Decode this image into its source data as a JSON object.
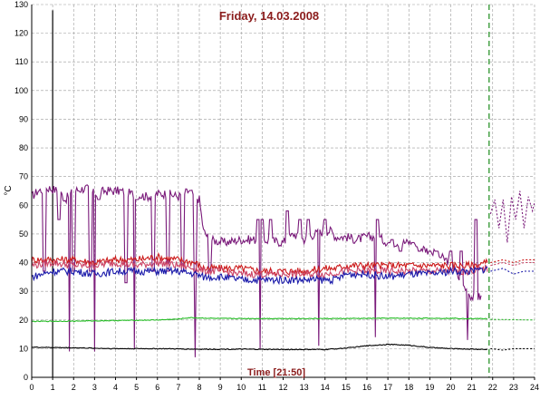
{
  "chart_data": {
    "type": "line",
    "title": "Friday, 14.03.2008",
    "xlabel": "Time [21:50]",
    "ylabel": "°C",
    "xlim": [
      0,
      24
    ],
    "ylim": [
      0,
      130
    ],
    "x_ticks": [
      0,
      1,
      2,
      3,
      4,
      5,
      6,
      7,
      8,
      9,
      10,
      11,
      12,
      13,
      14,
      15,
      16,
      17,
      18,
      19,
      20,
      21,
      22,
      23,
      24
    ],
    "y_ticks": [
      0,
      10,
      20,
      30,
      40,
      50,
      60,
      70,
      80,
      90,
      100,
      110,
      120,
      130
    ],
    "grid": true,
    "current_time_marker": 21.83,
    "annotations": [
      {
        "x": 1.0,
        "y_from": 0,
        "y_to": 128,
        "color": "#000000"
      }
    ],
    "series": [
      {
        "color": "#7a1a7a",
        "base_points": [
          [
            0,
            63
          ],
          [
            0.3,
            65
          ],
          [
            0.8,
            66
          ],
          [
            1.3,
            65
          ],
          [
            1.6,
            62
          ],
          [
            2.0,
            65
          ],
          [
            2.6,
            66
          ],
          [
            3.0,
            64
          ],
          [
            3.5,
            65
          ],
          [
            4.2,
            65
          ],
          [
            4.8,
            64
          ],
          [
            5.5,
            63
          ],
          [
            6.0,
            64
          ],
          [
            6.5,
            64
          ],
          [
            7.0,
            63
          ],
          [
            7.5,
            65
          ],
          [
            8.0,
            62
          ],
          [
            8.2,
            51
          ],
          [
            8.5,
            48
          ],
          [
            9.2,
            47
          ],
          [
            10.0,
            48
          ],
          [
            11.0,
            48
          ],
          [
            12.0,
            47
          ],
          [
            12.5,
            50
          ],
          [
            13.0,
            48
          ],
          [
            13.5,
            50
          ],
          [
            14.0,
            51
          ],
          [
            14.3,
            51
          ],
          [
            14.5,
            49
          ],
          [
            15.0,
            49
          ],
          [
            15.5,
            48
          ],
          [
            16.0,
            49
          ],
          [
            16.5,
            49
          ],
          [
            17.0,
            47
          ],
          [
            18.0,
            47
          ],
          [
            19.0,
            44
          ],
          [
            20.0,
            40
          ],
          [
            20.5,
            33
          ],
          [
            21.0,
            28
          ],
          [
            21.5,
            28
          ]
        ],
        "spikes": [
          [
            0.6,
            37
          ],
          [
            1.3,
            55
          ],
          [
            2.0,
            37
          ],
          [
            2.8,
            37
          ],
          [
            3.2,
            62
          ],
          [
            4.5,
            33
          ],
          [
            5.0,
            62
          ],
          [
            5.8,
            37
          ],
          [
            6.5,
            37
          ],
          [
            7.2,
            37
          ],
          [
            7.8,
            37
          ],
          [
            8.5,
            37
          ],
          [
            10.8,
            55
          ],
          [
            11.0,
            55
          ],
          [
            11.4,
            55
          ],
          [
            12.2,
            58
          ],
          [
            12.8,
            55
          ],
          [
            13.2,
            55
          ],
          [
            14.0,
            55
          ],
          [
            16.5,
            55
          ],
          [
            17.2,
            48
          ],
          [
            17.6,
            44
          ],
          [
            18.2,
            47
          ],
          [
            18.5,
            44
          ],
          [
            19.0,
            44
          ],
          [
            19.3,
            44
          ],
          [
            20.0,
            44
          ],
          [
            20.5,
            44
          ],
          [
            21.2,
            55
          ]
        ],
        "dips": [
          [
            1.8,
            9
          ],
          [
            3.0,
            9
          ],
          [
            4.9,
            10
          ],
          [
            7.8,
            7
          ],
          [
            10.9,
            10
          ],
          [
            13.7,
            11
          ],
          [
            16.4,
            14
          ],
          [
            20.8,
            13
          ]
        ],
        "forecast_points": [
          [
            21.9,
            57
          ],
          [
            22.1,
            62
          ],
          [
            22.3,
            52
          ],
          [
            22.5,
            62
          ],
          [
            22.7,
            47
          ],
          [
            22.9,
            63
          ],
          [
            23.1,
            55
          ],
          [
            23.3,
            65
          ],
          [
            23.5,
            52
          ],
          [
            23.7,
            63
          ],
          [
            23.9,
            58
          ],
          [
            24.0,
            61
          ]
        ]
      },
      {
        "color": "#cc1a1a",
        "base_points": [
          [
            0,
            41
          ],
          [
            1,
            41
          ],
          [
            2,
            41
          ],
          [
            3,
            40
          ],
          [
            4,
            41
          ],
          [
            5,
            41
          ],
          [
            6,
            42
          ],
          [
            7,
            41
          ],
          [
            7.8,
            40
          ],
          [
            8.2,
            38
          ],
          [
            9,
            38
          ],
          [
            10,
            38
          ],
          [
            11,
            37
          ],
          [
            12,
            37
          ],
          [
            13,
            37
          ],
          [
            14,
            38
          ],
          [
            14.5,
            38
          ],
          [
            15,
            39
          ],
          [
            16,
            39
          ],
          [
            17,
            39
          ],
          [
            18,
            39
          ],
          [
            19,
            39
          ],
          [
            20,
            39
          ],
          [
            21,
            39
          ],
          [
            21.8,
            40
          ]
        ],
        "spikes": [],
        "dips": [],
        "forecast_points": [
          [
            21.9,
            40
          ],
          [
            22.5,
            41
          ],
          [
            23,
            40
          ],
          [
            23.5,
            41
          ],
          [
            24,
            41
          ]
        ]
      },
      {
        "color": "#cc4466",
        "base_points": [
          [
            0,
            39
          ],
          [
            1,
            40
          ],
          [
            2,
            39
          ],
          [
            3,
            39
          ],
          [
            4,
            40
          ],
          [
            5,
            39
          ],
          [
            6,
            40
          ],
          [
            7,
            39
          ],
          [
            7.8,
            38
          ],
          [
            8.2,
            37
          ],
          [
            9,
            37
          ],
          [
            10,
            36
          ],
          [
            11,
            36
          ],
          [
            12,
            36
          ],
          [
            13,
            36
          ],
          [
            14,
            36
          ],
          [
            15,
            37
          ],
          [
            16,
            37
          ],
          [
            17,
            37
          ],
          [
            18,
            37
          ],
          [
            19,
            37
          ],
          [
            20,
            37
          ],
          [
            21,
            37
          ],
          [
            21.8,
            38
          ]
        ],
        "spikes": [],
        "dips": [],
        "forecast_points": [
          [
            21.9,
            39
          ],
          [
            22.5,
            40
          ],
          [
            23,
            39
          ],
          [
            23.5,
            40
          ],
          [
            24,
            40
          ]
        ]
      },
      {
        "color": "#1a1aaa",
        "base_points": [
          [
            0,
            35
          ],
          [
            0.5,
            36
          ],
          [
            1,
            37
          ],
          [
            2,
            37
          ],
          [
            3,
            36
          ],
          [
            4,
            37
          ],
          [
            5,
            37
          ],
          [
            6,
            37
          ],
          [
            7,
            37
          ],
          [
            7.8,
            36
          ],
          [
            8.2,
            35
          ],
          [
            9,
            35
          ],
          [
            10,
            34
          ],
          [
            11,
            34
          ],
          [
            12,
            34
          ],
          [
            13,
            34
          ],
          [
            14,
            34
          ],
          [
            14.5,
            34
          ],
          [
            15,
            36
          ],
          [
            16,
            36
          ],
          [
            17,
            35
          ],
          [
            18,
            36
          ],
          [
            19,
            36
          ],
          [
            20,
            37
          ],
          [
            21,
            37
          ],
          [
            21.8,
            38
          ]
        ],
        "spikes": [],
        "dips": [],
        "forecast_points": [
          [
            21.9,
            37
          ],
          [
            22.5,
            38
          ],
          [
            23,
            36
          ],
          [
            23.5,
            37
          ],
          [
            24,
            37
          ]
        ]
      },
      {
        "color": "#22bb22",
        "base_points": [
          [
            0,
            19.5
          ],
          [
            2,
            19.6
          ],
          [
            4,
            19.8
          ],
          [
            6,
            20
          ],
          [
            7,
            20.3
          ],
          [
            7.5,
            20.8
          ],
          [
            9,
            20.5
          ],
          [
            12,
            20.5
          ],
          [
            15,
            20.5
          ],
          [
            17,
            20.6
          ],
          [
            20,
            20.6
          ],
          [
            21.8,
            20.4
          ]
        ],
        "spikes": [],
        "dips": [],
        "forecast_points": [
          [
            21.9,
            20.2
          ],
          [
            24,
            20.0
          ]
        ]
      },
      {
        "color": "#000000",
        "base_points": [
          [
            0,
            10.5
          ],
          [
            2,
            10.3
          ],
          [
            4,
            10
          ],
          [
            6,
            10
          ],
          [
            8,
            9.8
          ],
          [
            10,
            9.8
          ],
          [
            12,
            9.7
          ],
          [
            14,
            9.7
          ],
          [
            15,
            10.2
          ],
          [
            16,
            11
          ],
          [
            17,
            11.5
          ],
          [
            18,
            11.2
          ],
          [
            19,
            10.4
          ],
          [
            20,
            10
          ],
          [
            21.8,
            9.7
          ]
        ],
        "spikes": [],
        "dips": [],
        "forecast_points": [
          [
            21.9,
            10
          ],
          [
            22.5,
            9.5
          ],
          [
            23,
            10
          ],
          [
            24,
            10
          ]
        ]
      }
    ]
  }
}
